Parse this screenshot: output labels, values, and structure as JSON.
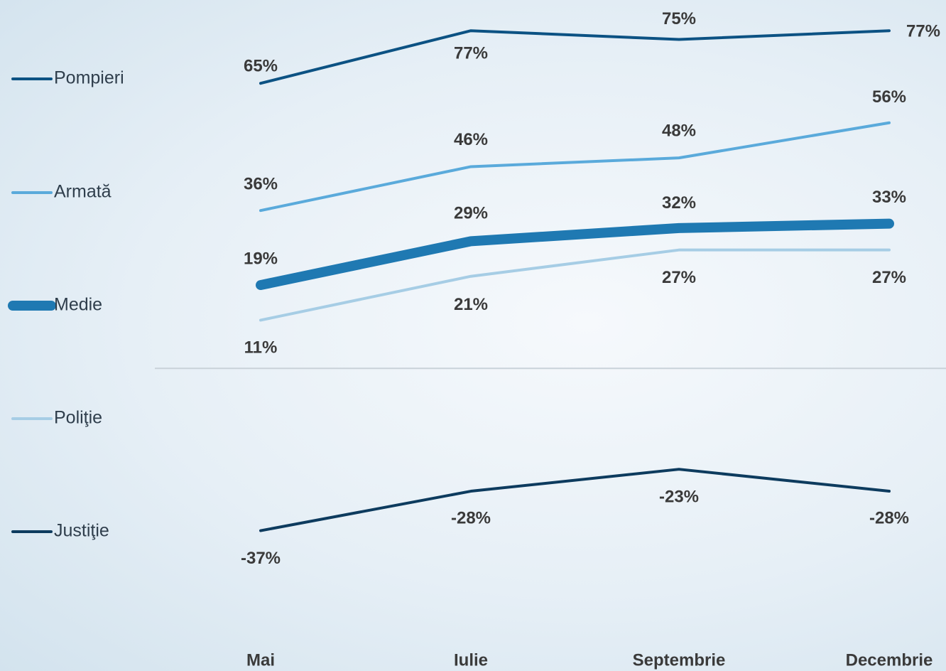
{
  "chart_data": {
    "type": "line",
    "categories": [
      "Mai",
      "Iulie",
      "Septembrie",
      "Decembrie"
    ],
    "ylim": [
      -69,
      84
    ],
    "series": [
      {
        "name": "Pompieri",
        "color": "#0c5283",
        "values": [
          65,
          77,
          75,
          77
        ],
        "value_labels": [
          "65%",
          "77%",
          "75%",
          "77%"
        ]
      },
      {
        "name": "Armată",
        "color": "#5aaadb",
        "values": [
          36,
          46,
          48,
          56
        ],
        "value_labels": [
          "36%",
          "46%",
          "48%",
          "56%"
        ]
      },
      {
        "name": "Medie",
        "color": "#1f79b2",
        "values": [
          19,
          29,
          32,
          33
        ],
        "value_labels": [
          "19%",
          "29%",
          "32%",
          "33%"
        ]
      },
      {
        "name": "Poliţie",
        "color": "#a6cde5",
        "values": [
          11,
          21,
          27,
          27
        ],
        "value_labels": [
          "11%",
          "21%",
          "27%",
          "27%"
        ]
      },
      {
        "name": "Justiţie",
        "color": "#0d3b5e",
        "values": [
          -37,
          -28,
          -23,
          -28
        ],
        "value_labels": [
          "-37%",
          "-28%",
          "-23%",
          "-28%"
        ]
      }
    ]
  }
}
